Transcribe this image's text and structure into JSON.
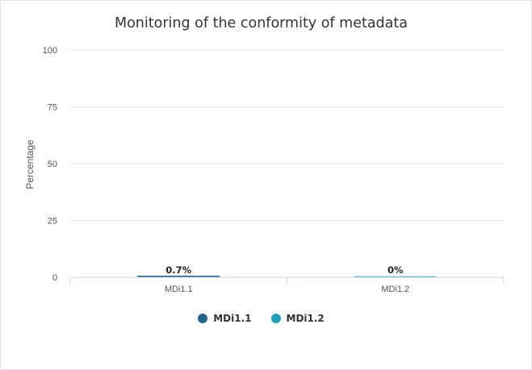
{
  "chart_data": {
    "type": "bar",
    "title": "Monitoring of the conformity of metadata",
    "xlabel": "",
    "ylabel": "Percentage",
    "categories": [
      "MDi1.1",
      "MDi1.2"
    ],
    "series": [
      {
        "name": "MDi1.1",
        "values": [
          0.7,
          null
        ],
        "color": "#1f6391"
      },
      {
        "name": "MDi1.2",
        "values": [
          null,
          0
        ],
        "color": "#1ba1b8"
      }
    ],
    "data_labels": [
      "0.7%",
      "0%"
    ],
    "ylim": [
      0,
      100
    ],
    "yticks": [
      0,
      25,
      50,
      75,
      100
    ],
    "grid": true,
    "legend_position": "bottom"
  },
  "legend": {
    "items": [
      {
        "label": "MDi1.1",
        "color": "#1f6391"
      },
      {
        "label": "MDi1.2",
        "color": "#1ba1b8"
      }
    ]
  }
}
